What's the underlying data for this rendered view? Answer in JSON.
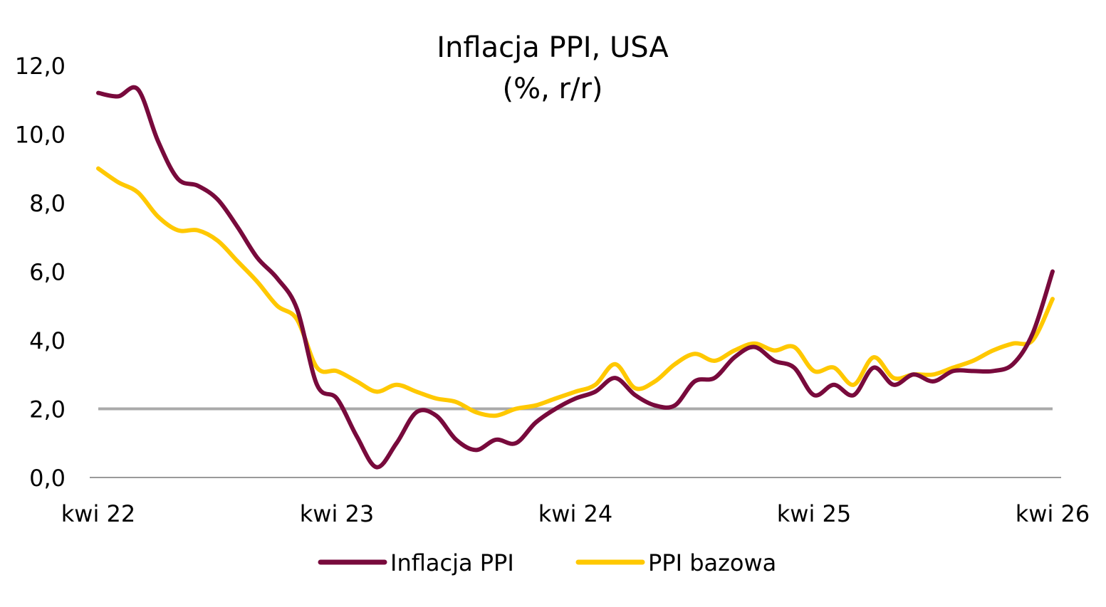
{
  "chart_data": {
    "type": "line",
    "title": [
      "Inflacja PPI, USA",
      "(%, r/r)"
    ],
    "xlabel": "",
    "ylabel": "",
    "ylim": [
      0,
      12
    ],
    "y_ticks": [
      "0,0",
      "2,0",
      "4,0",
      "6,0",
      "8,0",
      "10,0",
      "12,0"
    ],
    "y_tick_values": [
      0,
      2,
      4,
      6,
      8,
      10,
      12
    ],
    "x_ticks": [
      "kwi 22",
      "kwi 23",
      "kwi 24",
      "kwi 25",
      "kwi 26"
    ],
    "x_tick_values": [
      "2022-04",
      "2023-04",
      "2024-04",
      "2025-04",
      "2026-04"
    ],
    "reference_line": {
      "value": 2.0,
      "color": "#aaaaaa"
    },
    "grid": false,
    "legend_position": "bottom",
    "x": [
      "2022-04",
      "2022-05",
      "2022-06",
      "2022-07",
      "2022-08",
      "2022-09",
      "2022-10",
      "2022-11",
      "2022-12",
      "2023-01",
      "2023-02",
      "2023-03",
      "2023-04",
      "2023-05",
      "2023-06",
      "2023-07",
      "2023-08",
      "2023-09",
      "2023-10",
      "2023-11",
      "2023-12",
      "2024-01",
      "2024-02",
      "2024-03",
      "2024-04",
      "2024-05",
      "2024-06",
      "2024-07",
      "2024-08",
      "2024-09",
      "2024-10",
      "2024-11",
      "2024-12",
      "2025-01",
      "2025-02",
      "2025-03",
      "2025-04",
      "2025-05",
      "2025-06",
      "2025-07",
      "2025-08",
      "2025-09",
      "2025-10",
      "2025-11",
      "2025-12",
      "2026-01",
      "2026-02",
      "2026-03",
      "2026-04"
    ],
    "series": [
      {
        "name": "Inflacja PPI",
        "color": "#780A3C",
        "values": [
          11.2,
          11.1,
          11.3,
          9.8,
          8.7,
          8.5,
          8.1,
          7.3,
          6.4,
          5.8,
          4.9,
          2.7,
          2.3,
          1.2,
          0.3,
          1.0,
          1.9,
          1.8,
          1.1,
          0.8,
          1.1,
          1.0,
          1.6,
          2.0,
          2.3,
          2.5,
          2.9,
          2.4,
          2.1,
          2.1,
          2.8,
          2.9,
          3.5,
          3.8,
          3.4,
          3.2,
          2.4,
          2.7,
          2.4,
          3.2,
          2.7,
          3.0,
          2.8,
          3.1,
          3.1,
          3.1,
          3.3,
          4.2,
          6.0
        ]
      },
      {
        "name": "PPI bazowa",
        "color": "#FFC800",
        "values": [
          9.0,
          8.6,
          8.3,
          7.6,
          7.2,
          7.2,
          6.9,
          6.3,
          5.7,
          5.0,
          4.6,
          3.2,
          3.1,
          2.8,
          2.5,
          2.7,
          2.5,
          2.3,
          2.2,
          1.9,
          1.8,
          2.0,
          2.1,
          2.3,
          2.5,
          2.7,
          3.3,
          2.6,
          2.8,
          3.3,
          3.6,
          3.4,
          3.7,
          3.9,
          3.7,
          3.8,
          3.1,
          3.2,
          2.7,
          3.5,
          2.9,
          3.0,
          3.0,
          3.2,
          3.4,
          3.7,
          3.9,
          4.0,
          5.2
        ]
      }
    ]
  }
}
